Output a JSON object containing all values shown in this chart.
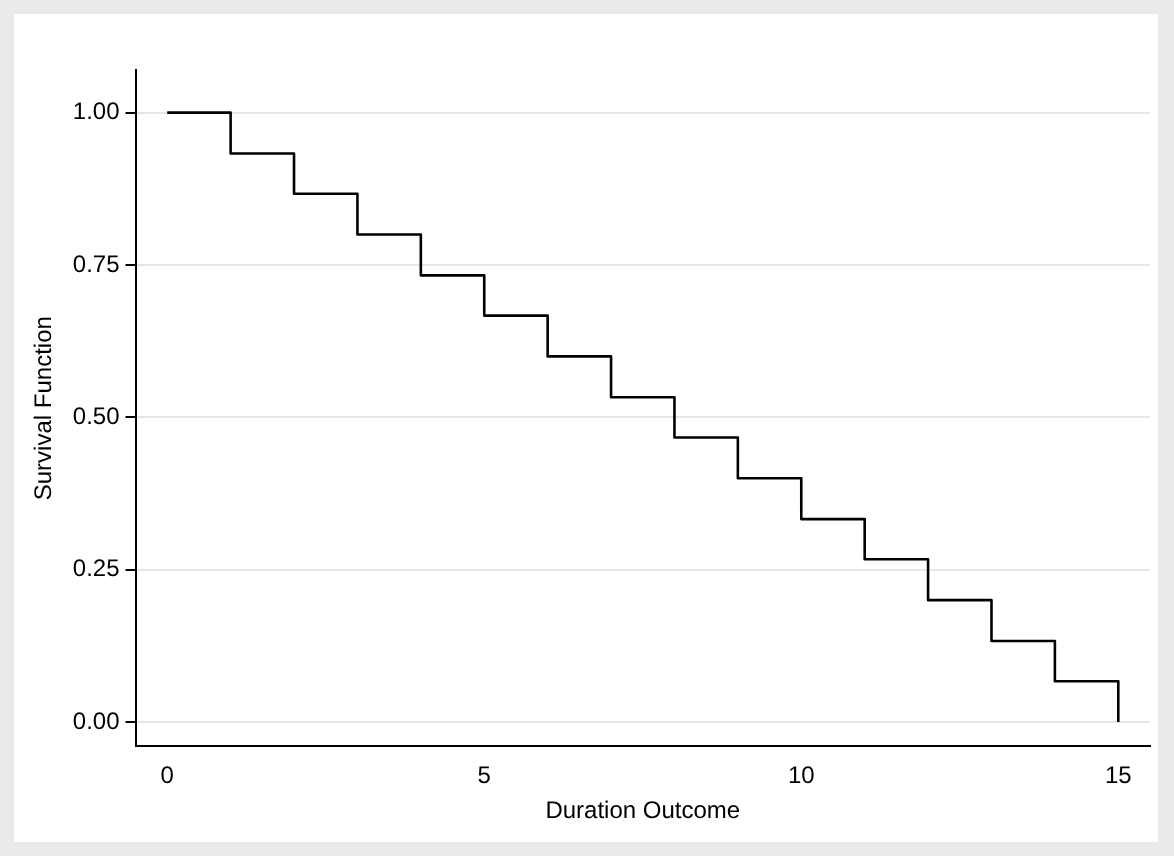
{
  "chart_data": {
    "type": "step",
    "xlabel": "Duration Outcome",
    "ylabel": "Survival Function",
    "x": [
      0,
      1,
      2,
      3,
      4,
      5,
      6,
      7,
      8,
      9,
      10,
      11,
      12,
      13,
      14,
      15
    ],
    "series": [
      {
        "color": "#000000",
        "values": [
          1,
          0.933,
          0.867,
          0.8,
          0.733,
          0.667,
          0.6,
          0.533,
          0.467,
          0.4,
          0.333,
          0.267,
          0.2,
          0.133,
          0.067,
          0
        ]
      }
    ],
    "xlim": [
      -0.5,
      15.5
    ],
    "ylim": [
      -0.04,
      1.07
    ],
    "xticks": [
      0,
      5,
      10,
      15
    ],
    "yticks": [
      {
        "value": 0,
        "label": "0.00"
      },
      {
        "value": 0.25,
        "label": "0.25"
      },
      {
        "value": 0.5,
        "label": "0.50"
      },
      {
        "value": 0.75,
        "label": "0.75"
      },
      {
        "value": 1,
        "label": "1.00"
      }
    ],
    "grid": "y",
    "legend": false
  }
}
